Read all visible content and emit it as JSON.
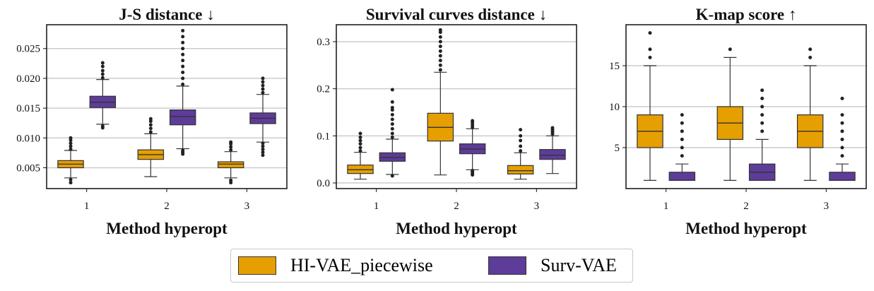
{
  "legend": {
    "items": [
      {
        "label": "HI-VAE_piecewise",
        "color": "#E69F00"
      },
      {
        "label": "Surv-VAE",
        "color": "#5E3C99"
      }
    ]
  },
  "chart_data": [
    {
      "type": "box",
      "title": "J-S distance ↓",
      "xlabel": "Method hyperopt",
      "ylabel": "",
      "categories": [
        "1",
        "2",
        "3"
      ],
      "ylim": [
        0.0015,
        0.029
      ],
      "yticks": [
        0.005,
        0.01,
        0.015,
        0.02,
        0.025
      ],
      "ytick_labels": [
        "0.005",
        "0.010",
        "0.015",
        "0.020",
        "0.025"
      ],
      "grid": "horizontal",
      "series": [
        {
          "name": "HI-VAE_piecewise",
          "color": "#E69F00",
          "boxes": [
            {
              "whislo": 0.0033,
              "q1": 0.005,
              "med": 0.0056,
              "q3": 0.0062,
              "whishi": 0.0079,
              "fliers_low": [
                0.0025,
                0.003
              ],
              "fliers_high": [
                0.0081,
                0.0086,
                0.0091,
                0.0096,
                0.01
              ]
            },
            {
              "whislo": 0.0035,
              "q1": 0.0064,
              "med": 0.0072,
              "q3": 0.008,
              "whishi": 0.0107,
              "fliers_low": [],
              "fliers_high": [
                0.011,
                0.0116,
                0.0122,
                0.0128,
                0.0132
              ]
            },
            {
              "whislo": 0.0033,
              "q1": 0.005,
              "med": 0.0056,
              "q3": 0.006,
              "whishi": 0.0077,
              "fliers_low": [
                0.0025,
                0.0029
              ],
              "fliers_high": [
                0.008,
                0.0085,
                0.009,
                0.0093
              ]
            }
          ]
        },
        {
          "name": "Surv-VAE",
          "color": "#5E3C99",
          "boxes": [
            {
              "whislo": 0.0123,
              "q1": 0.0151,
              "med": 0.016,
              "q3": 0.017,
              "whishi": 0.0198,
              "fliers_low": [
                0.0117,
                0.012
              ],
              "fliers_high": [
                0.0201,
                0.0207,
                0.0213,
                0.022,
                0.0226
              ]
            },
            {
              "whislo": 0.0082,
              "q1": 0.0122,
              "med": 0.0136,
              "q3": 0.0147,
              "whishi": 0.0187,
              "fliers_low": [
                0.0073,
                0.0076,
                0.0079
              ],
              "fliers_high": [
                0.019,
                0.02,
                0.021,
                0.022,
                0.023,
                0.024,
                0.025,
                0.026,
                0.027,
                0.028
              ]
            },
            {
              "whislo": 0.0093,
              "q1": 0.0124,
              "med": 0.0133,
              "q3": 0.0142,
              "whishi": 0.0173,
              "fliers_low": [
                0.0071,
                0.0076,
                0.0081,
                0.0086,
                0.0091
              ],
              "fliers_high": [
                0.0176,
                0.0182,
                0.0188,
                0.0194,
                0.02
              ]
            }
          ]
        }
      ]
    },
    {
      "type": "box",
      "title": "Survival curves distance ↓",
      "xlabel": "Method hyperopt",
      "ylabel": "",
      "categories": [
        "1",
        "2",
        "3"
      ],
      "ylim": [
        -0.012,
        0.336
      ],
      "yticks": [
        0.0,
        0.1,
        0.2,
        0.3
      ],
      "ytick_labels": [
        "0.0",
        "0.1",
        "0.2",
        "0.3"
      ],
      "grid": "horizontal",
      "series": [
        {
          "name": "HI-VAE_piecewise",
          "color": "#E69F00",
          "boxes": [
            {
              "whislo": 0.008,
              "q1": 0.02,
              "med": 0.028,
              "q3": 0.038,
              "whishi": 0.065,
              "fliers_low": [],
              "fliers_high": [
                0.068,
                0.075,
                0.083,
                0.09,
                0.097,
                0.105
              ]
            },
            {
              "whislo": 0.017,
              "q1": 0.089,
              "med": 0.118,
              "q3": 0.148,
              "whishi": 0.235,
              "fliers_low": [],
              "fliers_high": [
                0.24,
                0.25,
                0.26,
                0.27,
                0.28,
                0.29,
                0.3,
                0.31,
                0.32,
                0.325
              ]
            },
            {
              "whislo": 0.008,
              "q1": 0.019,
              "med": 0.026,
              "q3": 0.037,
              "whishi": 0.064,
              "fliers_low": [],
              "fliers_high": [
                0.068,
                0.078,
                0.09,
                0.1,
                0.113
              ]
            }
          ]
        },
        {
          "name": "Surv-VAE",
          "color": "#5E3C99",
          "boxes": [
            {
              "whislo": 0.018,
              "q1": 0.046,
              "med": 0.054,
              "q3": 0.064,
              "whishi": 0.093,
              "fliers_low": [
                0.015
              ],
              "fliers_high": [
                0.097,
                0.105,
                0.115,
                0.125,
                0.135,
                0.145,
                0.155,
                0.16,
                0.172,
                0.198
              ]
            },
            {
              "whislo": 0.028,
              "q1": 0.062,
              "med": 0.072,
              "q3": 0.083,
              "whishi": 0.115,
              "fliers_low": [
                0.017,
                0.02,
                0.023,
                0.026
              ],
              "fliers_high": [
                0.118,
                0.123,
                0.128,
                0.132
              ]
            },
            {
              "whislo": 0.02,
              "q1": 0.05,
              "med": 0.059,
              "q3": 0.071,
              "whishi": 0.1,
              "fliers_low": [],
              "fliers_high": [
                0.104,
                0.109,
                0.113,
                0.117
              ]
            }
          ]
        }
      ]
    },
    {
      "type": "box",
      "title": "K-map score ↑",
      "xlabel": "Method hyperopt",
      "ylabel": "",
      "categories": [
        "1",
        "2",
        "3"
      ],
      "ylim": [
        0,
        20
      ],
      "yticks": [
        5,
        10,
        15
      ],
      "ytick_labels": [
        "5",
        "10",
        "15"
      ],
      "grid": "horizontal",
      "series": [
        {
          "name": "HI-VAE_piecewise",
          "color": "#E69F00",
          "boxes": [
            {
              "whislo": 1,
              "q1": 5,
              "med": 7,
              "q3": 9,
              "whishi": 15,
              "fliers_low": [],
              "fliers_high": [
                16,
                17,
                19
              ]
            },
            {
              "whislo": 1,
              "q1": 6,
              "med": 8,
              "q3": 10,
              "whishi": 16,
              "fliers_low": [],
              "fliers_high": [
                17
              ]
            },
            {
              "whislo": 1,
              "q1": 5,
              "med": 7,
              "q3": 9,
              "whishi": 15,
              "fliers_low": [],
              "fliers_high": [
                16,
                17
              ]
            }
          ]
        },
        {
          "name": "Surv-VAE",
          "color": "#5E3C99",
          "boxes": [
            {
              "whislo": 1,
              "q1": 1,
              "med": 1,
              "q3": 2,
              "whishi": 3,
              "fliers_low": [],
              "fliers_high": [
                4,
                5,
                6,
                7,
                8,
                9
              ]
            },
            {
              "whislo": 1,
              "q1": 1,
              "med": 2,
              "q3": 3,
              "whishi": 6,
              "fliers_low": [],
              "fliers_high": [
                7,
                8,
                9,
                10,
                11,
                12
              ]
            },
            {
              "whislo": 1,
              "q1": 1,
              "med": 1,
              "q3": 2,
              "whishi": 3,
              "fliers_low": [],
              "fliers_high": [
                4,
                5,
                6,
                7,
                8,
                9,
                11
              ]
            }
          ]
        }
      ]
    }
  ]
}
